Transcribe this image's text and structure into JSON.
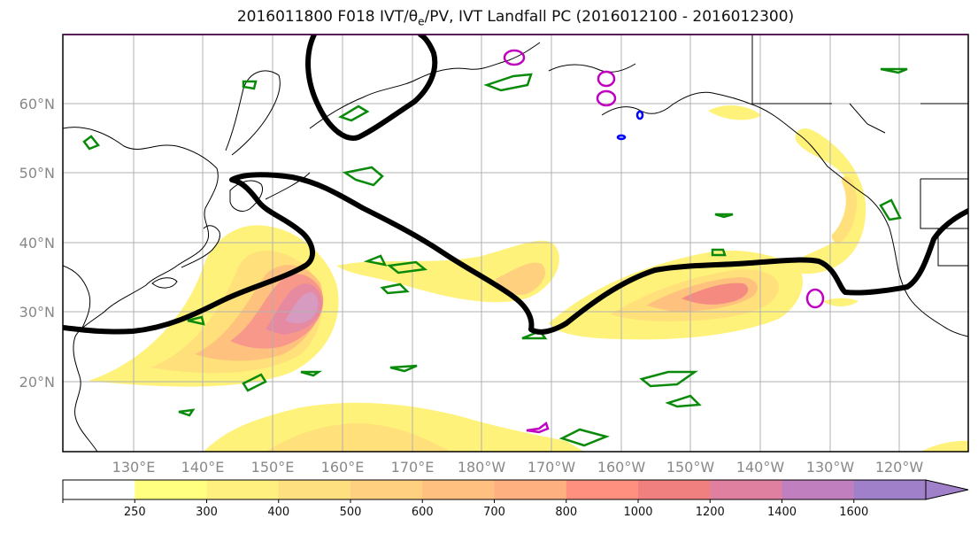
{
  "title": {
    "prefix": "2016011800 F018 IVT/θ",
    "sub": "e",
    "suffix": "/PV, IVT Landfall PC (2016012100 - 2016012300)"
  },
  "lat_labels": [
    "60°N",
    "50°N",
    "40°N",
    "30°N",
    "20°N"
  ],
  "lon_labels": [
    "130°E",
    "140°E",
    "150°E",
    "160°E",
    "170°E",
    "180°W",
    "170°W",
    "160°W",
    "150°W",
    "140°W",
    "130°W",
    "120°W"
  ],
  "colorbar": {
    "ticks": [
      "250",
      "300",
      "400",
      "500",
      "600",
      "700",
      "800",
      "1000",
      "1200",
      "1400",
      "1600"
    ],
    "colors": [
      "#ffffff",
      "#ffff80",
      "#fff080",
      "#ffe080",
      "#ffd080",
      "#ffc080",
      "#ffb080",
      "#ff9080",
      "#f08080",
      "#e080a0",
      "#c080c0",
      "#a080c8"
    ]
  },
  "colors": {
    "ivt_low": "#fff27a",
    "ivt_mid": "#ffcf80",
    "ivt_high": "#f58a80",
    "ivt_peak": "#d88fb0",
    "pv_contour": "#0a8a0a",
    "theta_contour": "#c000c0",
    "landfall_line": "#000000"
  }
}
